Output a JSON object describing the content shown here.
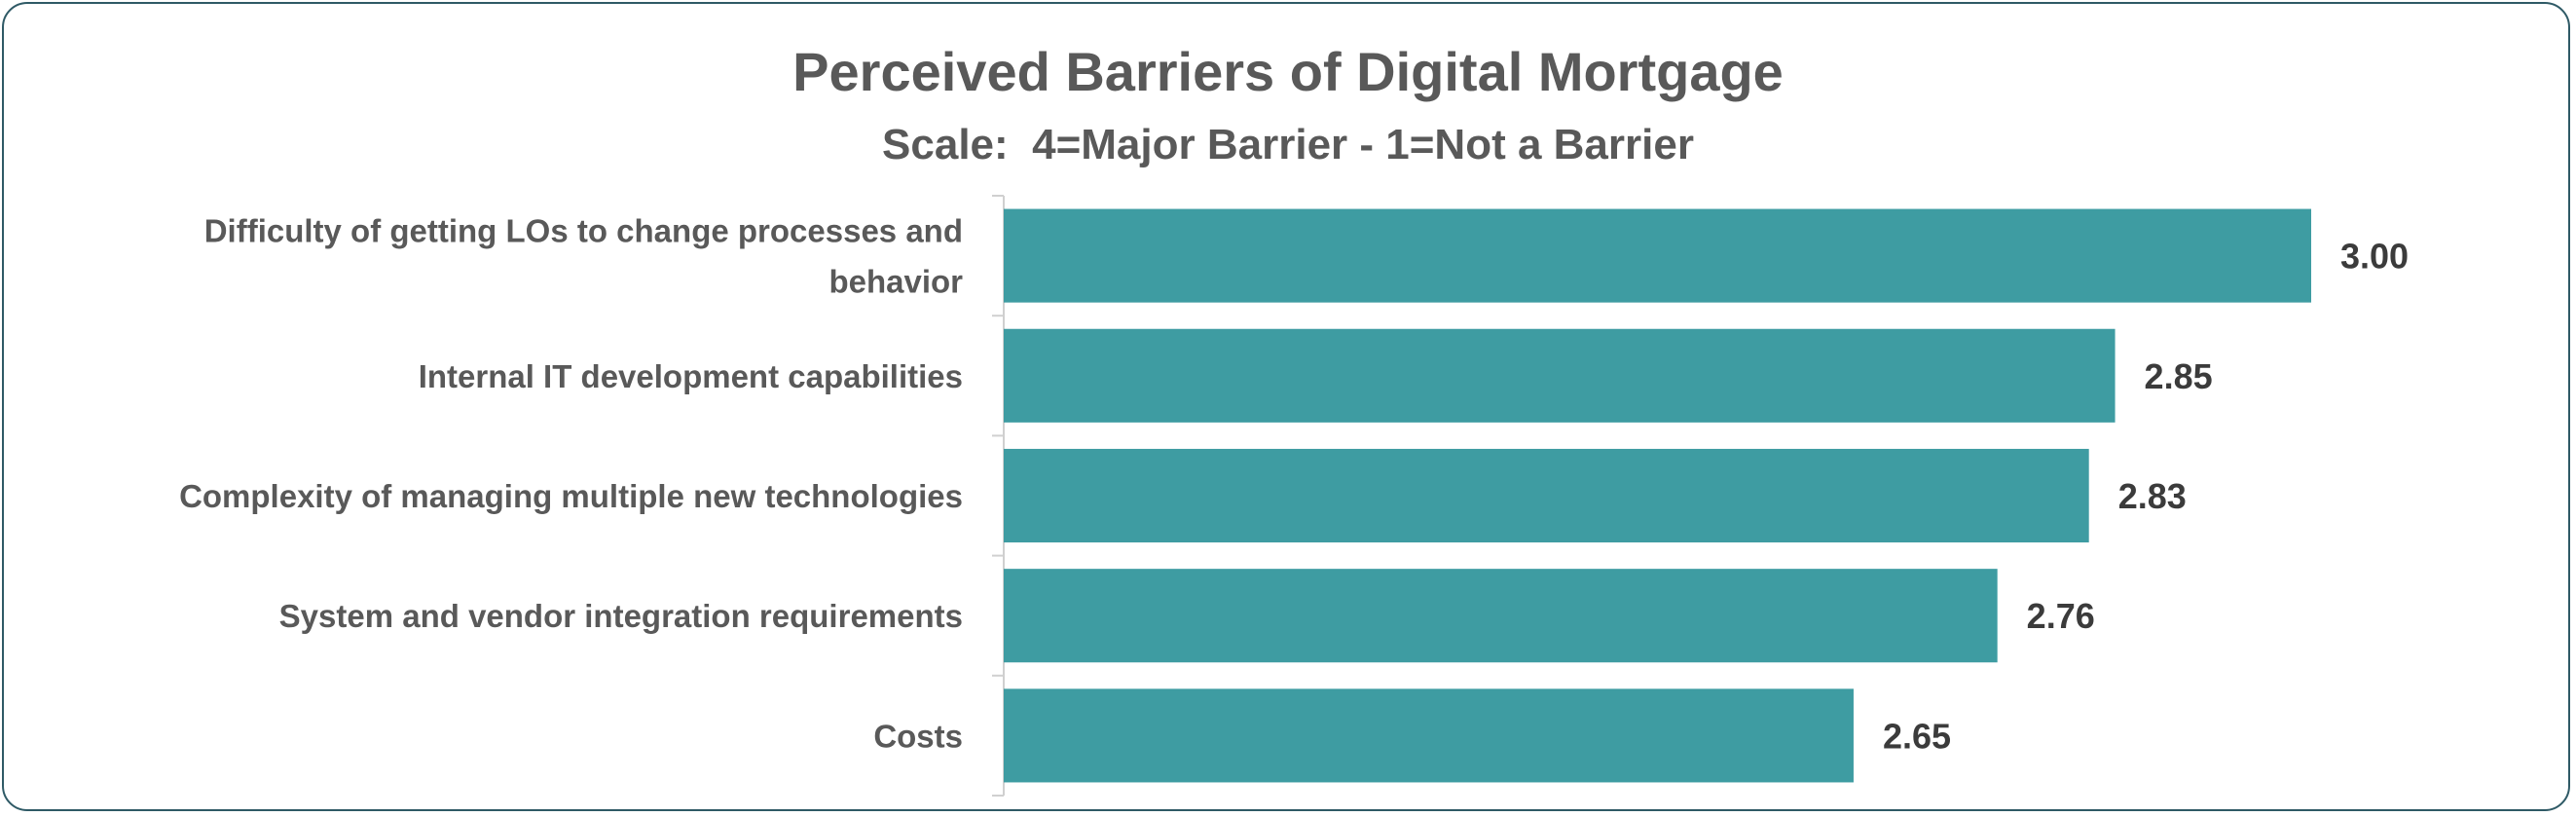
{
  "chart_data": {
    "type": "bar",
    "orientation": "horizontal",
    "title": "Perceived Barriers of Digital Mortgage",
    "subtitle": "Scale:  4=Major Barrier - 1=Not a Barrier",
    "categories": [
      [
        "Difficulty of getting LOs to change processes and",
        "behavior"
      ],
      [
        "Internal IT development capabilities"
      ],
      [
        "Complexity of managing multiple new technologies"
      ],
      [
        "System and vendor integration requirements"
      ],
      [
        "Costs"
      ]
    ],
    "values": [
      3.0,
      2.85,
      2.83,
      2.76,
      2.65
    ],
    "value_labels": [
      "3.00",
      "2.85",
      "2.83",
      "2.76",
      "2.65"
    ],
    "xlim": [
      2.0,
      3.0
    ],
    "bar_color": "#3e9ca2",
    "grid": false,
    "legend": "none"
  }
}
